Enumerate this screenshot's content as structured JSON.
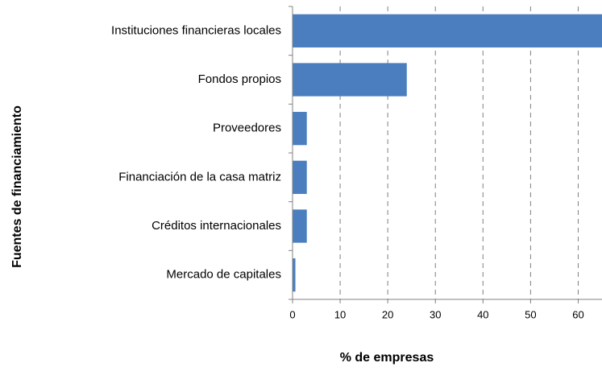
{
  "chart_data": {
    "type": "bar",
    "orientation": "horizontal",
    "x_label": "% de empresas",
    "y_label": "Fuentes de financiamiento",
    "categories": [
      "Instituciones financieras locales",
      "Fondos propios",
      "Proveedores",
      "Financiación de la casa matriz",
      "Créditos internacionales",
      "Mercado de capitales"
    ],
    "values": [
      65,
      24,
      3,
      3,
      3,
      0.6
    ],
    "color": "#4a7ebf",
    "xlim": [
      0,
      65
    ],
    "xticks": [
      0,
      10,
      20,
      30,
      40,
      50,
      60
    ],
    "grid": true
  }
}
